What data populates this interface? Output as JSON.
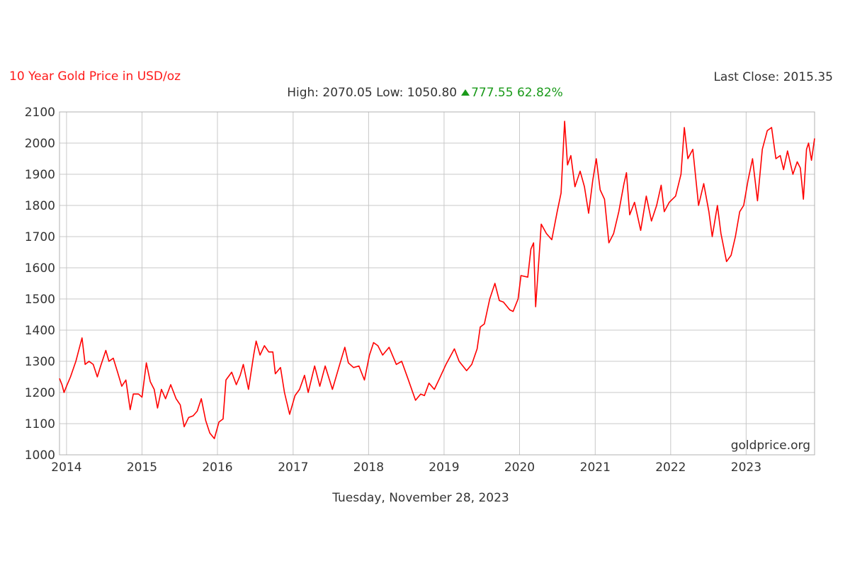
{
  "header": {
    "title": "10 Year Gold Price in USD/oz",
    "last_close_label": "Last Close: 2015.35",
    "high_low": "High: 2070.05 Low: 1050.80",
    "change": "777.55 62.82%"
  },
  "footer": {
    "date": "Tuesday, November 28, 2023"
  },
  "colors": {
    "line": "#ff0000",
    "title": "#ff1a1a",
    "up": "#1a9a1a",
    "grid": "#c8c8c8",
    "text": "#333333"
  },
  "chart_data": {
    "type": "line",
    "title": "10 Year Gold Price in USD/oz",
    "xlabel": "",
    "ylabel": "",
    "ylim": [
      1000,
      2100
    ],
    "xlim": [
      "2013-11-28",
      "2023-11-28"
    ],
    "y_ticks": [
      "1000",
      "1100",
      "1200",
      "1300",
      "1400",
      "1500",
      "1600",
      "1700",
      "1800",
      "1900",
      "2000",
      "2100"
    ],
    "x_ticks": [
      "2014",
      "2015",
      "2016",
      "2017",
      "2018",
      "2019",
      "2020",
      "2021",
      "2022",
      "2023"
    ],
    "grid": true,
    "watermark": "goldprice.org",
    "series": [
      {
        "points": [
          [
            "2013-11-28",
            1245
          ],
          [
            "2013-12-10",
            1225
          ],
          [
            "2013-12-20",
            1200
          ],
          [
            "2014-01-01",
            1220
          ],
          [
            "2014-01-20",
            1250
          ],
          [
            "2014-02-15",
            1300
          ],
          [
            "2014-03-05",
            1345
          ],
          [
            "2014-03-17",
            1375
          ],
          [
            "2014-04-01",
            1290
          ],
          [
            "2014-04-20",
            1300
          ],
          [
            "2014-05-10",
            1290
          ],
          [
            "2014-05-30",
            1250
          ],
          [
            "2014-06-15",
            1285
          ],
          [
            "2014-07-10",
            1335
          ],
          [
            "2014-07-25",
            1300
          ],
          [
            "2014-08-15",
            1310
          ],
          [
            "2014-09-05",
            1265
          ],
          [
            "2014-09-25",
            1220
          ],
          [
            "2014-10-15",
            1240
          ],
          [
            "2014-11-05",
            1145
          ],
          [
            "2014-11-20",
            1195
          ],
          [
            "2014-12-15",
            1195
          ],
          [
            "2015-01-01",
            1185
          ],
          [
            "2015-01-22",
            1295
          ],
          [
            "2015-02-10",
            1235
          ],
          [
            "2015-03-01",
            1210
          ],
          [
            "2015-03-17",
            1150
          ],
          [
            "2015-04-05",
            1210
          ],
          [
            "2015-04-25",
            1180
          ],
          [
            "2015-05-20",
            1225
          ],
          [
            "2015-06-15",
            1180
          ],
          [
            "2015-07-05",
            1160
          ],
          [
            "2015-07-24",
            1090
          ],
          [
            "2015-08-15",
            1120
          ],
          [
            "2015-09-05",
            1125
          ],
          [
            "2015-09-25",
            1140
          ],
          [
            "2015-10-15",
            1180
          ],
          [
            "2015-11-05",
            1110
          ],
          [
            "2015-11-25",
            1070
          ],
          [
            "2015-12-17",
            1052
          ],
          [
            "2016-01-08",
            1105
          ],
          [
            "2016-01-28",
            1115
          ],
          [
            "2016-02-11",
            1240
          ],
          [
            "2016-03-10",
            1265
          ],
          [
            "2016-04-01",
            1225
          ],
          [
            "2016-04-20",
            1255
          ],
          [
            "2016-05-05",
            1290
          ],
          [
            "2016-05-30",
            1210
          ],
          [
            "2016-06-24",
            1320
          ],
          [
            "2016-07-06",
            1365
          ],
          [
            "2016-07-25",
            1320
          ],
          [
            "2016-08-15",
            1350
          ],
          [
            "2016-09-05",
            1330
          ],
          [
            "2016-09-25",
            1330
          ],
          [
            "2016-10-07",
            1260
          ],
          [
            "2016-11-01",
            1280
          ],
          [
            "2016-11-20",
            1200
          ],
          [
            "2016-12-15",
            1130
          ],
          [
            "2017-01-10",
            1190
          ],
          [
            "2017-02-01",
            1210
          ],
          [
            "2017-02-25",
            1255
          ],
          [
            "2017-03-15",
            1200
          ],
          [
            "2017-04-15",
            1285
          ],
          [
            "2017-05-10",
            1220
          ],
          [
            "2017-06-05",
            1285
          ],
          [
            "2017-07-10",
            1210
          ],
          [
            "2017-08-10",
            1280
          ],
          [
            "2017-09-08",
            1345
          ],
          [
            "2017-09-25",
            1295
          ],
          [
            "2017-10-20",
            1280
          ],
          [
            "2017-11-15",
            1285
          ],
          [
            "2017-12-12",
            1240
          ],
          [
            "2018-01-05",
            1320
          ],
          [
            "2018-01-25",
            1360
          ],
          [
            "2018-02-15",
            1350
          ],
          [
            "2018-03-10",
            1320
          ],
          [
            "2018-04-10",
            1345
          ],
          [
            "2018-05-15",
            1290
          ],
          [
            "2018-06-10",
            1300
          ],
          [
            "2018-07-10",
            1245
          ],
          [
            "2018-08-16",
            1175
          ],
          [
            "2018-09-10",
            1195
          ],
          [
            "2018-09-28",
            1190
          ],
          [
            "2018-10-20",
            1230
          ],
          [
            "2018-11-15",
            1210
          ],
          [
            "2018-12-10",
            1245
          ],
          [
            "2019-01-10",
            1290
          ],
          [
            "2019-02-20",
            1340
          ],
          [
            "2019-03-15",
            1300
          ],
          [
            "2019-04-20",
            1270
          ],
          [
            "2019-05-15",
            1290
          ],
          [
            "2019-06-10",
            1340
          ],
          [
            "2019-06-25",
            1410
          ],
          [
            "2019-07-15",
            1420
          ],
          [
            "2019-08-10",
            1500
          ],
          [
            "2019-09-04",
            1550
          ],
          [
            "2019-09-25",
            1495
          ],
          [
            "2019-10-15",
            1490
          ],
          [
            "2019-11-15",
            1465
          ],
          [
            "2019-12-01",
            1460
          ],
          [
            "2019-12-25",
            1500
          ],
          [
            "2020-01-08",
            1575
          ],
          [
            "2020-02-10",
            1570
          ],
          [
            "2020-02-25",
            1660
          ],
          [
            "2020-03-09",
            1680
          ],
          [
            "2020-03-19",
            1475
          ],
          [
            "2020-04-05",
            1640
          ],
          [
            "2020-04-15",
            1740
          ],
          [
            "2020-05-10",
            1710
          ],
          [
            "2020-06-05",
            1690
          ],
          [
            "2020-07-01",
            1780
          ],
          [
            "2020-07-20",
            1840
          ],
          [
            "2020-08-06",
            2070
          ],
          [
            "2020-08-20",
            1930
          ],
          [
            "2020-09-05",
            1960
          ],
          [
            "2020-09-25",
            1860
          ],
          [
            "2020-10-20",
            1910
          ],
          [
            "2020-11-10",
            1860
          ],
          [
            "2020-11-30",
            1775
          ],
          [
            "2020-12-20",
            1880
          ],
          [
            "2021-01-06",
            1950
          ],
          [
            "2021-01-25",
            1850
          ],
          [
            "2021-02-15",
            1820
          ],
          [
            "2021-03-08",
            1680
          ],
          [
            "2021-03-31",
            1710
          ],
          [
            "2021-04-25",
            1780
          ],
          [
            "2021-05-20",
            1870
          ],
          [
            "2021-06-01",
            1905
          ],
          [
            "2021-06-17",
            1770
          ],
          [
            "2021-07-10",
            1810
          ],
          [
            "2021-08-09",
            1720
          ],
          [
            "2021-09-05",
            1830
          ],
          [
            "2021-09-30",
            1750
          ],
          [
            "2021-10-25",
            1800
          ],
          [
            "2021-11-16",
            1865
          ],
          [
            "2021-12-01",
            1780
          ],
          [
            "2021-12-25",
            1810
          ],
          [
            "2022-01-25",
            1830
          ],
          [
            "2022-02-20",
            1900
          ],
          [
            "2022-03-08",
            2050
          ],
          [
            "2022-03-25",
            1950
          ],
          [
            "2022-04-18",
            1980
          ],
          [
            "2022-05-16",
            1800
          ],
          [
            "2022-06-10",
            1870
          ],
          [
            "2022-07-05",
            1780
          ],
          [
            "2022-07-21",
            1700
          ],
          [
            "2022-08-15",
            1800
          ],
          [
            "2022-09-01",
            1710
          ],
          [
            "2022-09-28",
            1620
          ],
          [
            "2022-10-20",
            1640
          ],
          [
            "2022-11-10",
            1700
          ],
          [
            "2022-12-01",
            1780
          ],
          [
            "2022-12-20",
            1800
          ],
          [
            "2023-01-10",
            1880
          ],
          [
            "2023-02-01",
            1950
          ],
          [
            "2023-02-25",
            1815
          ],
          [
            "2023-03-20",
            1980
          ],
          [
            "2023-04-13",
            2040
          ],
          [
            "2023-05-04",
            2050
          ],
          [
            "2023-05-25",
            1950
          ],
          [
            "2023-06-15",
            1960
          ],
          [
            "2023-07-01",
            1915
          ],
          [
            "2023-07-20",
            1975
          ],
          [
            "2023-08-15",
            1900
          ],
          [
            "2023-09-05",
            1940
          ],
          [
            "2023-09-20",
            1920
          ],
          [
            "2023-10-05",
            1820
          ],
          [
            "2023-10-20",
            1980
          ],
          [
            "2023-10-30",
            2000
          ],
          [
            "2023-11-13",
            1945
          ],
          [
            "2023-11-28",
            2015
          ]
        ]
      }
    ]
  }
}
